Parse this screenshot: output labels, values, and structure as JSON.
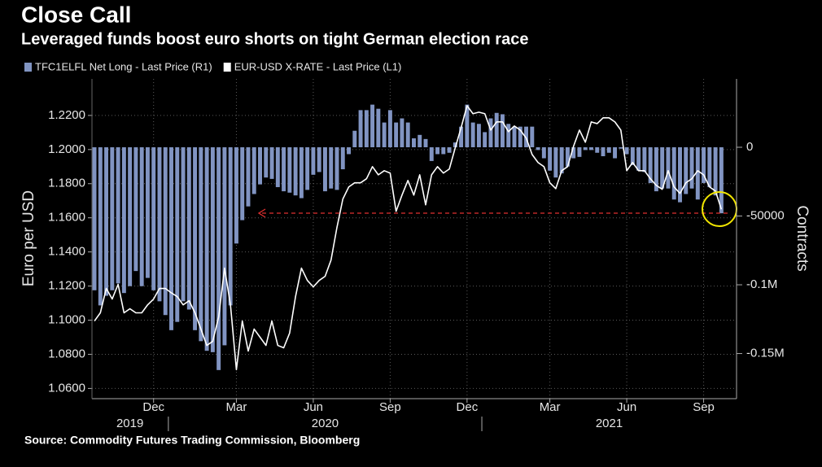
{
  "chart_data": {
    "type": "combo",
    "title": "Close Call",
    "subtitle": "Leveraged funds boost euro shorts on tight German election race",
    "source": "Source: Commodity Futures Trading Commission, Bloomberg",
    "ylabel": "Euro per USD",
    "y2label": "Contracts",
    "ylim": [
      1.054,
      1.2414
    ],
    "yticks": [
      {
        "value": 1.06,
        "label": "1.0600"
      },
      {
        "value": 1.08,
        "label": "1.0800"
      },
      {
        "value": 1.1,
        "label": "1.1000"
      },
      {
        "value": 1.12,
        "label": "1.1200"
      },
      {
        "value": 1.14,
        "label": "1.1400"
      },
      {
        "value": 1.16,
        "label": "1.1600"
      },
      {
        "value": 1.18,
        "label": "1.1800"
      },
      {
        "value": 1.2,
        "label": "1.2000"
      },
      {
        "value": 1.22,
        "label": "1.2200"
      }
    ],
    "y2lim": [
      -182800,
      49700
    ],
    "y2ticks": [
      0,
      -50000,
      {
        "value": -100000,
        "label": "-0.1M"
      },
      {
        "value": -150000,
        "label": "-0.15M"
      }
    ],
    "grid": true,
    "categories": [
      null,
      null,
      null,
      null,
      null,
      null,
      null,
      null,
      null,
      null,
      "Dec",
      null,
      null,
      null,
      null,
      null,
      null,
      null,
      null,
      null,
      null,
      null,
      null,
      null,
      "Mar",
      null,
      null,
      null,
      null,
      null,
      null,
      null,
      null,
      null,
      null,
      null,
      null,
      "Jun",
      null,
      null,
      null,
      null,
      null,
      null,
      null,
      null,
      null,
      null,
      null,
      null,
      "Sep",
      null,
      null,
      null,
      null,
      null,
      null,
      null,
      null,
      null,
      null,
      null,
      null,
      "Dec",
      null,
      null,
      null,
      null,
      null,
      null,
      null,
      null,
      null,
      null,
      null,
      null,
      null,
      "Mar",
      null,
      null,
      null,
      null,
      null,
      null,
      null,
      null,
      null,
      null,
      null,
      null,
      "Jun",
      null,
      null,
      null,
      null,
      null,
      null,
      null,
      null,
      null,
      null,
      null,
      null,
      "Sep",
      null,
      null,
      null
    ],
    "years": [
      {
        "name": "2019",
        "from": 0,
        "to": 12
      },
      {
        "name": "2020",
        "from": 13,
        "to": 65
      },
      {
        "name": "2021",
        "from": 66,
        "to": 106
      }
    ],
    "series": [
      {
        "name": "TFC1ELFL Net Long - Last Price (R1)",
        "type": "bar",
        "axis": "y2",
        "color": "#8194c2",
        "values": [
          -104000,
          -115000,
          -108000,
          -104000,
          -99000,
          -106000,
          -101000,
          -90000,
          -101000,
          -95000,
          -104000,
          -112000,
          -122000,
          -133000,
          -127000,
          -112000,
          -118000,
          -133000,
          -141000,
          -148000,
          -149000,
          -162000,
          -144000,
          -115000,
          -70000,
          -53000,
          -43000,
          -34000,
          -27000,
          -22000,
          -23000,
          -29000,
          -32000,
          -33000,
          -35000,
          -37000,
          -31000,
          -20000,
          -18000,
          -32000,
          -30000,
          -31000,
          -16000,
          -5000,
          12000,
          27000,
          27000,
          31000,
          28000,
          18000,
          27000,
          18000,
          21000,
          18000,
          6500,
          9000,
          6000,
          -10000,
          -5000,
          -5000,
          -4000,
          3500,
          15000,
          31000,
          18000,
          17000,
          11000,
          21000,
          25000,
          24000,
          17000,
          15000,
          15000,
          15000,
          15000,
          -2000,
          -8000,
          -17000,
          -22000,
          -19000,
          -14000,
          -8000,
          -7000,
          -2000,
          -2000,
          -4000,
          -6500,
          -4000,
          -8000,
          -1000,
          -5000,
          -13000,
          -17000,
          -18000,
          -26000,
          -32000,
          -30000,
          -30000,
          -38000,
          -40000,
          -34000,
          -30000,
          -38000,
          -26000,
          -29000,
          -35000,
          -48000
        ]
      },
      {
        "name": "EUR-USD X-RATE - Last Price (L1)",
        "type": "line",
        "axis": "y",
        "color": "#ffffff",
        "values": [
          1.0995,
          1.1043,
          1.1186,
          1.1124,
          1.121,
          1.1043,
          1.1067,
          1.1043,
          1.1043,
          1.109,
          1.1124,
          1.1186,
          1.1186,
          1.116,
          1.1138,
          1.109,
          1.1114,
          1.1043,
          1.0948,
          1.0852,
          1.0876,
          1.1019,
          1.1305,
          1.109,
          1.071,
          1.0995,
          1.0819,
          1.0948,
          1.09,
          1.0852,
          1.0995,
          1.0852,
          1.0838,
          1.0924,
          1.1138,
          1.1305,
          1.1233,
          1.1195,
          1.1233,
          1.1257,
          1.1352,
          1.1543,
          1.171,
          1.1781,
          1.1805,
          1.1805,
          1.1829,
          1.19,
          1.1852,
          1.1876,
          1.1862,
          1.1638,
          1.1733,
          1.1819,
          1.1733,
          1.1852,
          1.1676,
          1.1852,
          1.19,
          1.1862,
          1.1886,
          1.201,
          1.2129,
          1.2257,
          1.221,
          1.2219,
          1.221,
          1.2114,
          1.2162,
          1.2162,
          1.2105,
          1.2138,
          1.2114,
          1.2067,
          1.1971,
          1.1924,
          1.19,
          1.1805,
          1.1771,
          1.1876,
          1.19,
          1.2019,
          1.2114,
          1.2043,
          1.2162,
          1.2152,
          1.2186,
          1.2186,
          1.2162,
          1.2114,
          1.1876,
          1.1924,
          1.1876,
          1.1876,
          1.1829,
          1.179,
          1.1767,
          1.1876,
          1.1781,
          1.1743,
          1.1805,
          1.1829,
          1.1876,
          1.1852,
          1.1781,
          1.1757,
          1.165
        ]
      }
    ]
  }
}
